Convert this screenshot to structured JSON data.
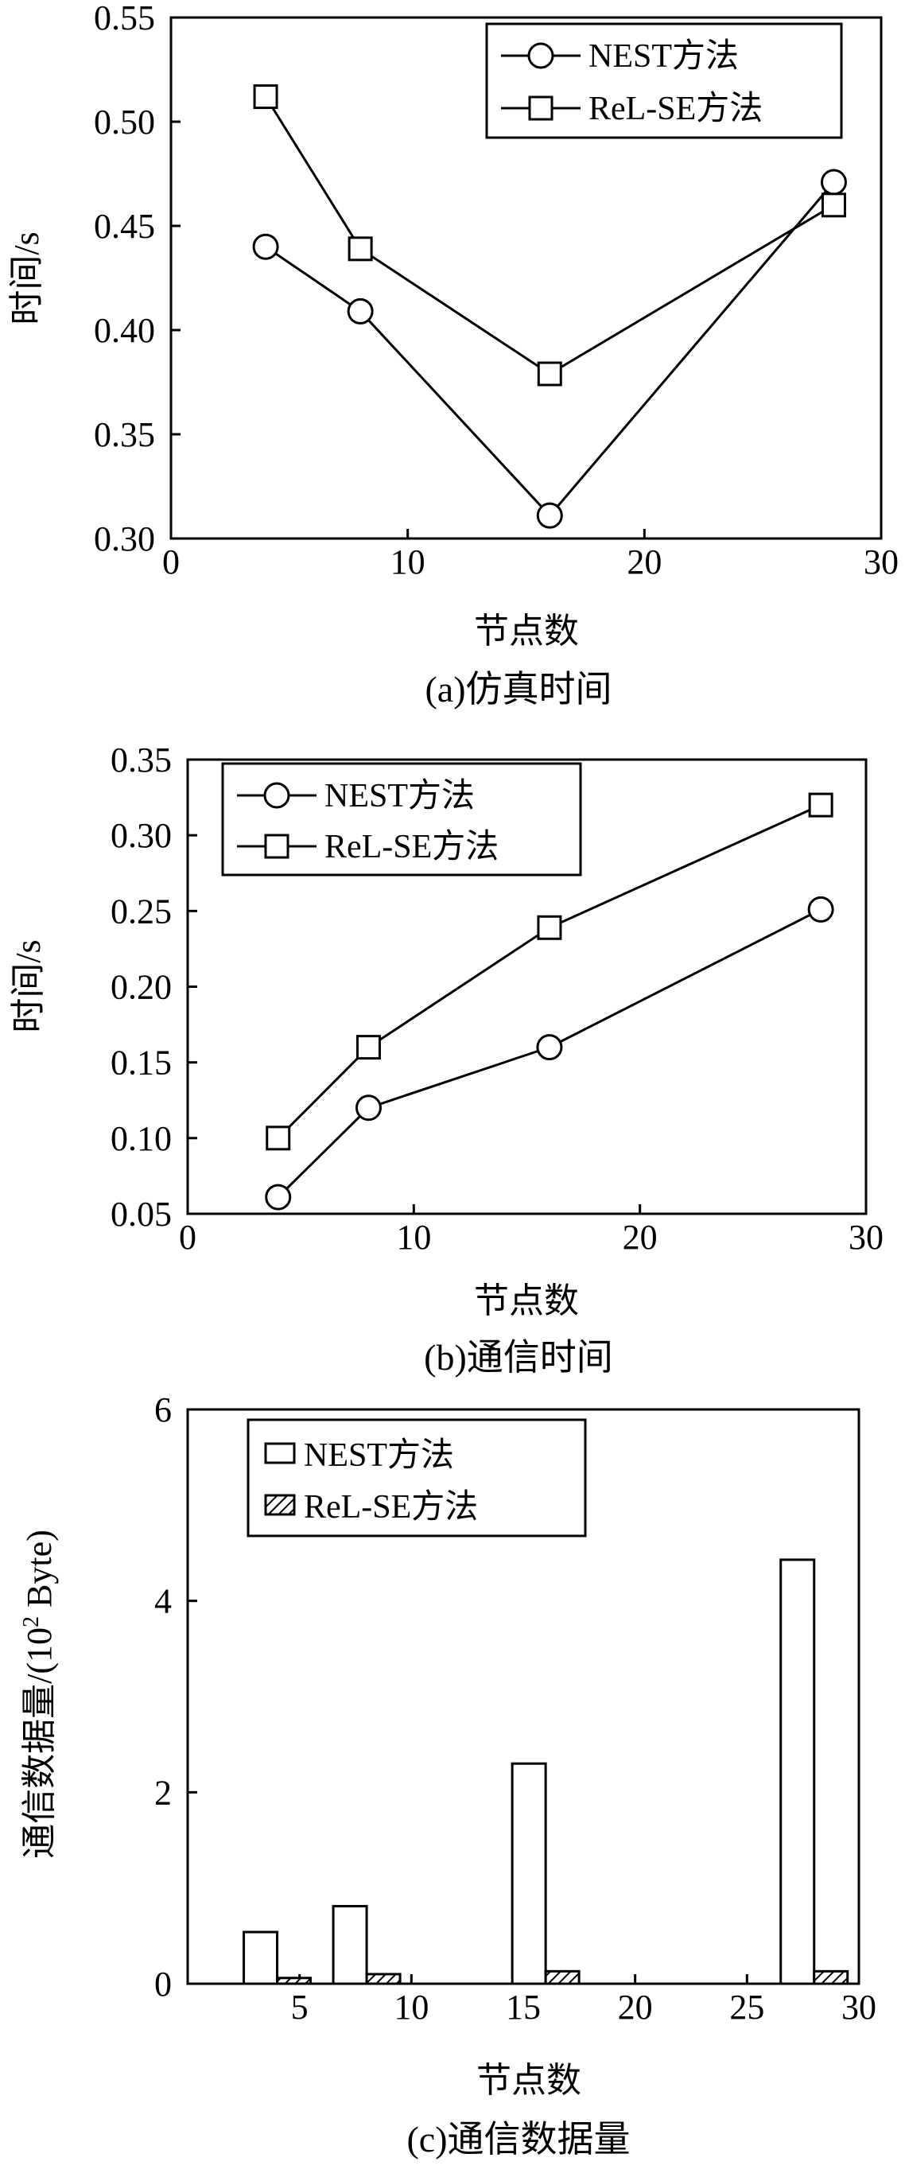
{
  "chart_data": [
    {
      "type": "line",
      "caption": "(a)仿真时间",
      "xlabel": "节点数",
      "ylabel": "时间/s",
      "xlim": [
        0,
        30
      ],
      "ylim": [
        0.3,
        0.55
      ],
      "xticks": [
        "0",
        "10",
        "20",
        "30"
      ],
      "yticks": [
        "0.30",
        "0.35",
        "0.40",
        "0.45",
        "0.50",
        "0.55"
      ],
      "legend_position": "top-right",
      "series": [
        {
          "name": "NEST方法",
          "marker": "circle",
          "x": [
            4,
            8,
            16,
            28
          ],
          "y": [
            0.44,
            0.409,
            0.311,
            0.471
          ]
        },
        {
          "name": "ReL-SE方法",
          "marker": "square",
          "x": [
            4,
            8,
            16,
            28
          ],
          "y": [
            0.512,
            0.439,
            0.379,
            0.46
          ]
        }
      ]
    },
    {
      "type": "line",
      "caption": "(b)通信时间",
      "xlabel": "节点数",
      "ylabel": "时间/s",
      "xlim": [
        0,
        30
      ],
      "ylim": [
        0.05,
        0.35
      ],
      "xticks": [
        "0",
        "10",
        "20",
        "30"
      ],
      "yticks": [
        "0.05",
        "0.10",
        "0.15",
        "0.20",
        "0.25",
        "0.30",
        "0.35"
      ],
      "legend_position": "top-left",
      "series": [
        {
          "name": "NEST方法",
          "marker": "circle",
          "x": [
            4,
            8,
            16,
            28
          ],
          "y": [
            0.061,
            0.12,
            0.16,
            0.251
          ]
        },
        {
          "name": "ReL-SE方法",
          "marker": "square",
          "x": [
            4,
            8,
            16,
            28
          ],
          "y": [
            0.1,
            0.16,
            0.239,
            0.32
          ]
        }
      ]
    },
    {
      "type": "bar",
      "caption": "(c)通信数据量",
      "xlabel": "节点数",
      "ylabel_main": "通信数据量/(10",
      "ylabel_sup": "2",
      "ylabel_tail": " Byte)",
      "xlim": [
        0,
        30
      ],
      "ylim": [
        0,
        6
      ],
      "xticks": [
        "5",
        "10",
        "15",
        "20",
        "25",
        "30"
      ],
      "yticks": [
        "0",
        "2",
        "4",
        "6"
      ],
      "legend_position": "top-left",
      "categories": [
        4,
        8,
        16,
        28
      ],
      "series": [
        {
          "name": "NEST方法",
          "pattern": "empty",
          "values": [
            0.54,
            0.81,
            2.3,
            4.43
          ]
        },
        {
          "name": "ReL-SE方法",
          "pattern": "hatched",
          "values": [
            0.06,
            0.1,
            0.13,
            0.13
          ]
        }
      ]
    }
  ]
}
